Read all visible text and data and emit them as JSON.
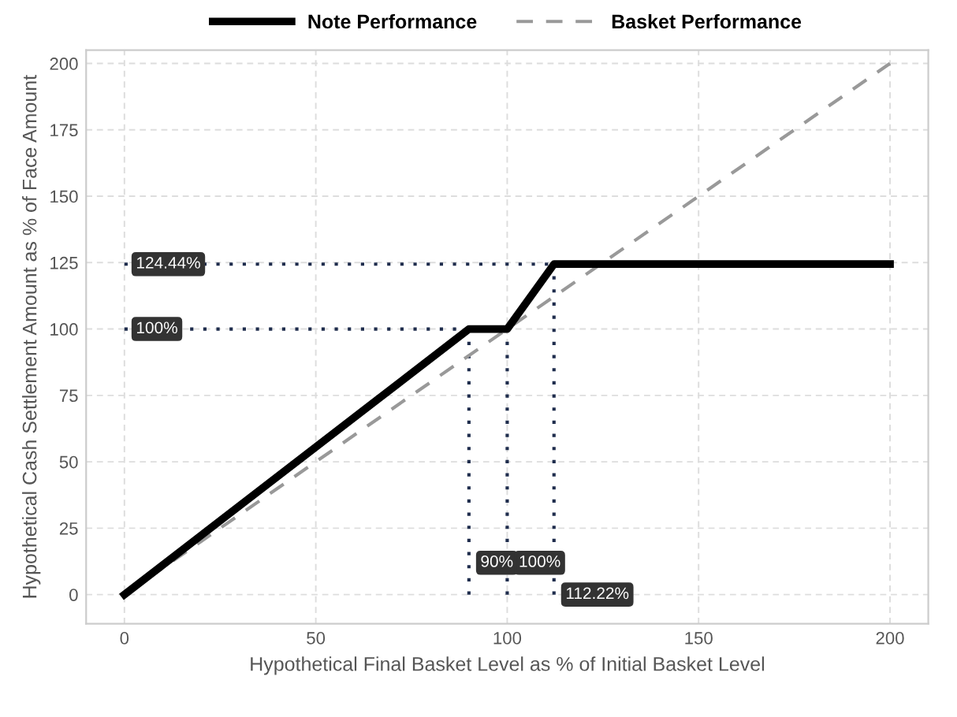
{
  "chart_data": {
    "type": "line",
    "xlabel": "Hypothetical Final Basket Level as % of Initial Basket Level",
    "ylabel": "Hypothetical Cash Settlement Amount as % of Face Amount",
    "series": [
      {
        "name": "Note Performance",
        "color": "#000000",
        "line_style": "solid",
        "x": [
          0,
          90,
          100,
          112.22,
          200
        ],
        "values": [
          0,
          100,
          100,
          124.44,
          124.44
        ]
      },
      {
        "name": "Basket Performance",
        "color": "#999999",
        "line_style": "dashed",
        "x": [
          0,
          200
        ],
        "values": [
          0,
          200
        ]
      }
    ],
    "ref_lines": [
      {
        "axis": "y",
        "value": 124.44,
        "label": "124.44%",
        "color": "#1f2d4d",
        "line_style": "dotted"
      },
      {
        "axis": "y",
        "value": 100,
        "label": "100%",
        "color": "#1f2d4d",
        "line_style": "dotted"
      },
      {
        "axis": "x",
        "value": 90,
        "label": "90%",
        "color": "#1f2d4d",
        "line_style": "dotted"
      },
      {
        "axis": "x",
        "value": 100,
        "label": "100%",
        "color": "#1f2d4d",
        "line_style": "dotted"
      },
      {
        "axis": "x",
        "value": 112.22,
        "label": "112.22%",
        "color": "#1f2d4d",
        "line_style": "dotted"
      }
    ],
    "xlim": [
      -10,
      210
    ],
    "ylim": [
      -11,
      205
    ],
    "xticks": [
      0,
      50,
      100,
      150,
      200
    ],
    "yticks": [
      0,
      25,
      50,
      75,
      100,
      125,
      150,
      175,
      200
    ],
    "grid": true,
    "legend": "top"
  }
}
